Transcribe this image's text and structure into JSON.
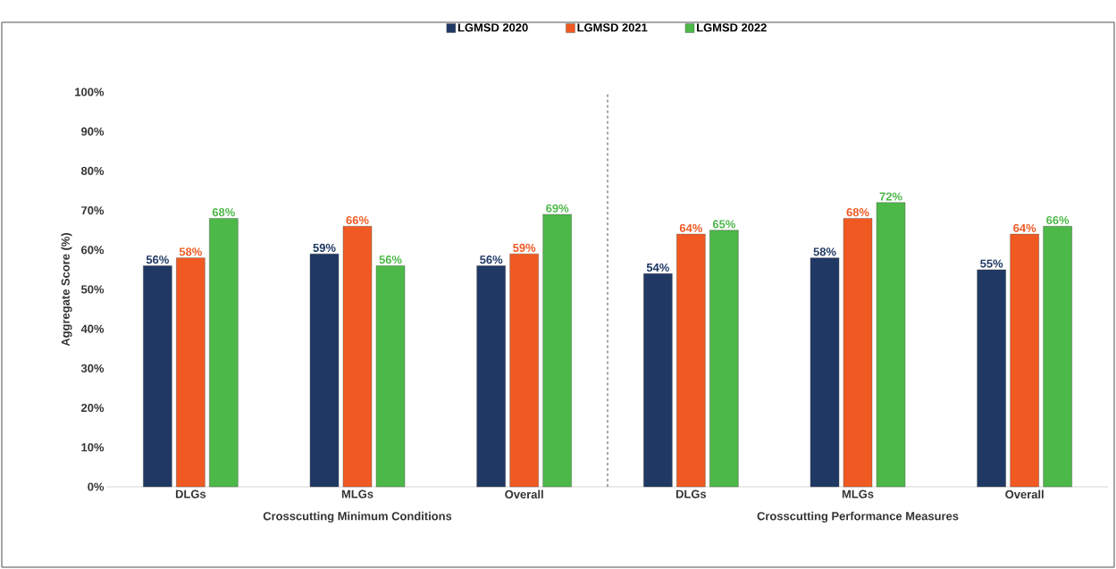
{
  "chart_data": [
    {
      "type": "bar",
      "categories": [
        "DLGs",
        "MLGs",
        "Overall"
      ],
      "xlabel": "Crosscutting Minimum Conditions",
      "ylabel": "Aggregate Score (%)",
      "ylim": [
        0,
        100
      ],
      "yticks": [
        {
          "value": 0,
          "label": "0%"
        },
        {
          "value": 10,
          "label": "10%"
        },
        {
          "value": 20,
          "label": "20%"
        },
        {
          "value": 30,
          "label": "30%"
        },
        {
          "value": 40,
          "label": "40%"
        },
        {
          "value": 50,
          "label": "50%"
        },
        {
          "value": 60,
          "label": "60%"
        },
        {
          "value": 70,
          "label": "70%"
        },
        {
          "value": 80,
          "label": "80%"
        },
        {
          "value": 90,
          "label": "90%"
        },
        {
          "value": 100,
          "label": "100%"
        }
      ],
      "legend": "top",
      "grid": false,
      "series": [
        {
          "name": "LGMSD 2020",
          "color": "#1f3864",
          "values": [
            56,
            59,
            56
          ],
          "value_labels": [
            "56%",
            "59%",
            "56%"
          ]
        },
        {
          "name": "LGMSD 2021",
          "color": "#f05a22",
          "values": [
            58,
            66,
            59
          ],
          "value_labels": [
            "58%",
            "66%",
            "59%"
          ]
        },
        {
          "name": "LGMSD 2022",
          "color": "#4cb848",
          "values": [
            68,
            56,
            69
          ],
          "value_labels": [
            "68%",
            "56%",
            "69%"
          ]
        }
      ]
    },
    {
      "type": "bar",
      "categories": [
        "DLGs",
        "MLGs",
        "Overall"
      ],
      "xlabel": "Crosscutting Performance Measures",
      "ylim": [
        0,
        100
      ],
      "tick_labels": "x",
      "grid": false,
      "series": [
        {
          "color": "#1f3864",
          "values": [
            54,
            58,
            55
          ],
          "value_labels": [
            "54%",
            "58%",
            "55%"
          ]
        },
        {
          "color": "#f05a22",
          "values": [
            64,
            68,
            64
          ],
          "value_labels": [
            "64%",
            "68%",
            "64%"
          ]
        },
        {
          "color": "#4cb848",
          "values": [
            65,
            72,
            66
          ],
          "value_labels": [
            "65%",
            "72%",
            "66%"
          ]
        }
      ]
    }
  ]
}
